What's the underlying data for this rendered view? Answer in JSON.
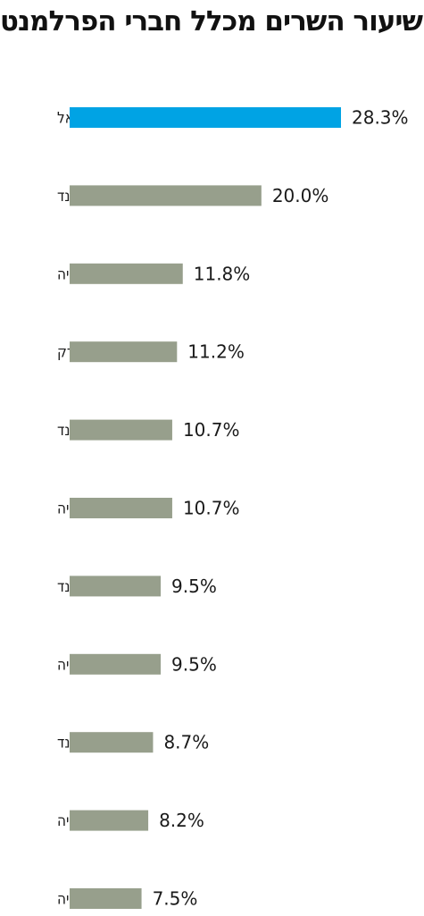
{
  "chart_data": {
    "type": "bar",
    "orientation": "horizontal",
    "title": "שיעור השרים מכלל חברי הפרלמנט",
    "categories": [
      "ישראל",
      "ניו זילנד",
      "נורבגיה",
      "דנמרק",
      "הולנד",
      "סלובקיה",
      "אירלנד",
      "שוודיה",
      "פינלנד",
      "אוסטריה",
      "צ'כיה"
    ],
    "values": [
      28.3,
      20.0,
      11.8,
      11.2,
      10.7,
      10.7,
      9.5,
      9.5,
      8.7,
      8.2,
      7.5
    ],
    "value_labels": [
      "28.3%",
      "20.0%",
      "11.8%",
      "11.2%",
      "10.7%",
      "10.7%",
      "9.5%",
      "9.5%",
      "8.7%",
      "8.2%",
      "7.5%"
    ],
    "unit": "%",
    "xlabel": "",
    "ylabel": "",
    "xlim": [
      0,
      28.3
    ],
    "grid": false,
    "legend": "none",
    "colors": {
      "highlight": "#00A3E4",
      "default": "#979F8C"
    },
    "highlight_index": 0
  }
}
